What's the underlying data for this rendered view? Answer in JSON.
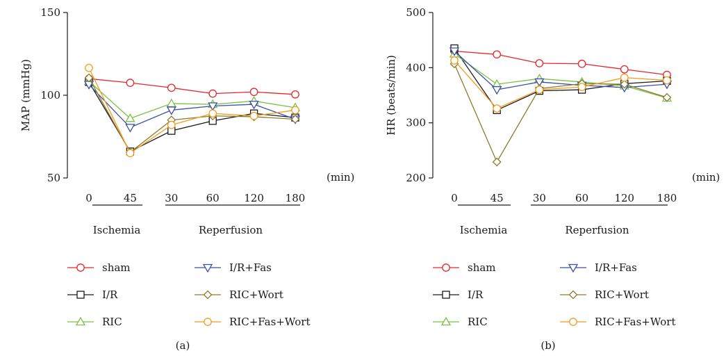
{
  "figure": {
    "panels": [
      "(a)",
      "(b)"
    ],
    "x_unit": "(min)",
    "phase_labels": [
      "Ischemia",
      "Reperfusion"
    ]
  },
  "chart_data": [
    {
      "type": "line",
      "panel": "(a)",
      "xlabel": "",
      "ylabel": "MAP (mmHg)",
      "ylim": [
        50,
        150
      ],
      "yticks": [
        50,
        100,
        150
      ],
      "categories": [
        "0",
        "45",
        "30",
        "60",
        "120",
        "180"
      ],
      "grid": false,
      "legend": "bottom, two columns",
      "series": [
        {
          "name": "sham",
          "color": "#e8262a",
          "marker": "circle",
          "values": [
            110,
            107.5,
            104.5,
            101,
            102,
            100.5
          ]
        },
        {
          "name": "I/R",
          "color": "#1a1a1a",
          "marker": "square",
          "values": [
            108,
            66,
            78.5,
            84.5,
            89,
            86.5
          ]
        },
        {
          "name": "RIC",
          "color": "#7ac143",
          "marker": "triangle-up",
          "values": [
            108.5,
            86,
            95,
            94.5,
            96.5,
            92.5
          ]
        },
        {
          "name": "I/R+Fas",
          "color": "#3a4fa3",
          "marker": "triangle-down",
          "values": [
            106.5,
            80.5,
            91,
            93.5,
            94.5,
            85.5
          ]
        },
        {
          "name": "RIC+Wort",
          "color": "#8b7a2e",
          "marker": "diamond",
          "values": [
            110.5,
            65.5,
            85,
            87.5,
            87,
            85.5
          ]
        },
        {
          "name": "RIC+Fas+Wort",
          "color": "#f39c1f",
          "marker": "circle",
          "values": [
            116.5,
            65,
            82,
            89,
            87.5,
            91
          ]
        }
      ]
    },
    {
      "type": "line",
      "panel": "(b)",
      "xlabel": "",
      "ylabel": "HR (beats/min)",
      "ylim": [
        200,
        500
      ],
      "yticks": [
        200,
        300,
        400,
        500
      ],
      "categories": [
        "0",
        "45",
        "30",
        "60",
        "120",
        "180"
      ],
      "grid": false,
      "legend": "bottom, two columns",
      "series": [
        {
          "name": "sham",
          "color": "#e8262a",
          "marker": "circle",
          "values": [
            430,
            424,
            408,
            407,
            397,
            387
          ]
        },
        {
          "name": "I/R",
          "color": "#1a1a1a",
          "marker": "square",
          "values": [
            435,
            323,
            358,
            360,
            371,
            376
          ]
        },
        {
          "name": "RIC",
          "color": "#7ac143",
          "marker": "triangle-up",
          "values": [
            425,
            370,
            380,
            374,
            367,
            345
          ]
        },
        {
          "name": "I/R+Fas",
          "color": "#3a4fa3",
          "marker": "triangle-down",
          "values": [
            430,
            360,
            374,
            368,
            364,
            370
          ]
        },
        {
          "name": "RIC+Wort",
          "color": "#8b7a2e",
          "marker": "diamond",
          "values": [
            407,
            229,
            362,
            371,
            370,
            346
          ]
        },
        {
          "name": "RIC+Fas+Wort",
          "color": "#f39c1f",
          "marker": "circle",
          "values": [
            413,
            326,
            360,
            365,
            382,
            377
          ]
        }
      ]
    }
  ]
}
